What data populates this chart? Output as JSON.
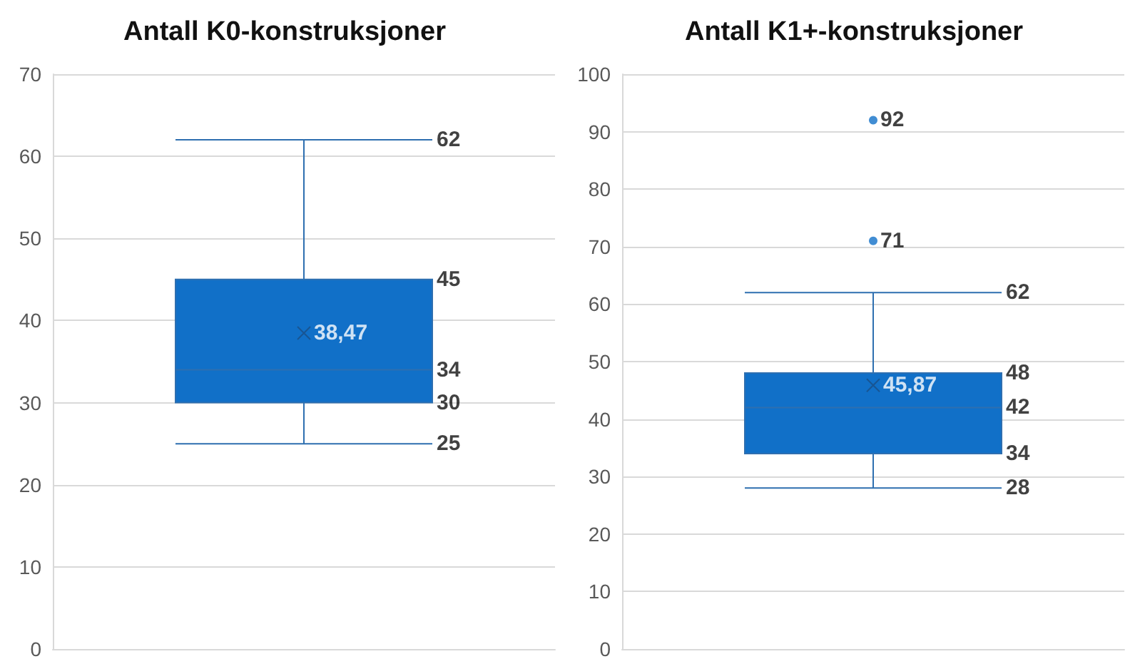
{
  "chart_data": [
    {
      "type": "box",
      "title": "Antall K0-konstruksjoner",
      "categories": [
        null
      ],
      "boxes": [
        {
          "low": 25,
          "q1": 30,
          "median": 34,
          "q3": 45,
          "high": 62,
          "mean": 38.47
        }
      ],
      "color": "#1170c8",
      "ylim": [
        0,
        70
      ],
      "yticks": [
        0,
        10,
        20,
        30,
        40,
        50,
        60,
        70
      ],
      "grid": "y",
      "annotations": [
        "62",
        "45",
        "38,47",
        "34",
        "30",
        "25"
      ]
    },
    {
      "type": "box",
      "title": "Antall K1+-konstruksjoner",
      "categories": [
        null
      ],
      "boxes": [
        {
          "low": 28,
          "q1": 34,
          "median": 42,
          "q3": 48,
          "high": 62,
          "mean": 45.87,
          "outliers": [
            71,
            92
          ]
        }
      ],
      "color": "#1170c8",
      "ylim": [
        0,
        100
      ],
      "yticks": [
        0,
        10,
        20,
        30,
        40,
        50,
        60,
        70,
        80,
        90,
        100
      ],
      "grid": "y",
      "annotations": [
        "92",
        "71",
        "62",
        "48",
        "45,87",
        "42",
        "34",
        "28"
      ]
    }
  ]
}
